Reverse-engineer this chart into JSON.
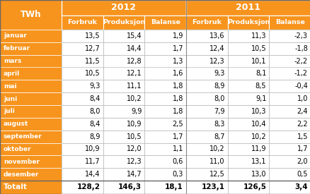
{
  "title_col": "TWh",
  "years": [
    "2012",
    "2011"
  ],
  "col_headers": [
    "Forbruk",
    "Produksjon",
    "Balanse",
    "Forbruk",
    "Produksjon",
    "Balanse"
  ],
  "months": [
    "januar",
    "februar",
    "mars",
    "april",
    "mai",
    "juni",
    "juli",
    "august",
    "september",
    "oktober",
    "november",
    "desember"
  ],
  "data_2012": [
    [
      13.5,
      15.4,
      1.9
    ],
    [
      12.7,
      14.4,
      1.7
    ],
    [
      11.5,
      12.8,
      1.3
    ],
    [
      10.5,
      12.1,
      1.6
    ],
    [
      9.3,
      11.1,
      1.8
    ],
    [
      8.4,
      10.2,
      1.8
    ],
    [
      8.0,
      9.9,
      1.8
    ],
    [
      8.4,
      10.9,
      2.5
    ],
    [
      8.9,
      10.5,
      1.7
    ],
    [
      10.9,
      12.0,
      1.1
    ],
    [
      11.7,
      12.3,
      0.6
    ],
    [
      14.4,
      14.7,
      0.3
    ]
  ],
  "data_2011": [
    [
      13.6,
      11.3,
      -2.3
    ],
    [
      12.4,
      10.5,
      -1.8
    ],
    [
      12.3,
      10.1,
      -2.2
    ],
    [
      9.3,
      8.1,
      -1.2
    ],
    [
      8.9,
      8.5,
      -0.4
    ],
    [
      8.0,
      9.1,
      1.0
    ],
    [
      7.9,
      10.3,
      2.4
    ],
    [
      8.3,
      10.4,
      2.2
    ],
    [
      8.7,
      10.2,
      1.5
    ],
    [
      10.2,
      11.9,
      1.7
    ],
    [
      11.0,
      13.1,
      2.0
    ],
    [
      12.5,
      13.0,
      0.5
    ]
  ],
  "totals": [
    128.2,
    146.3,
    18.1,
    123.1,
    126.5,
    3.4
  ],
  "orange_color": "#F7941D",
  "white_color": "#FFFFFF",
  "black_color": "#000000"
}
